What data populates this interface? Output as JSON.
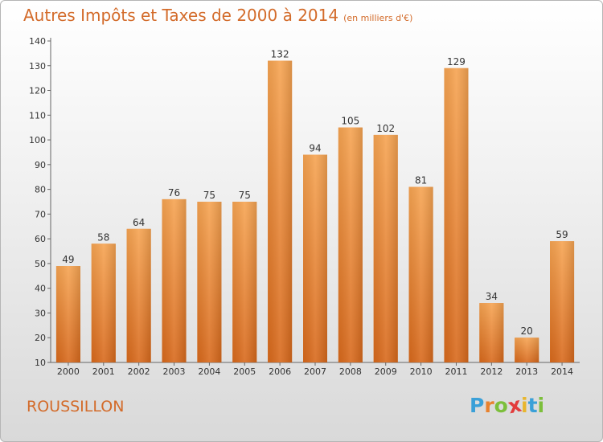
{
  "chart_data": {
    "type": "bar",
    "title": "Autres Impôts et Taxes de 2000 à 2014",
    "subtitle": "(en milliers d'€)",
    "categories": [
      "2000",
      "2001",
      "2002",
      "2003",
      "2004",
      "2005",
      "2006",
      "2007",
      "2008",
      "2009",
      "2010",
      "2011",
      "2012",
      "2013",
      "2014"
    ],
    "values": [
      49,
      58,
      64,
      76,
      75,
      75,
      132,
      94,
      105,
      102,
      81,
      129,
      34,
      20,
      59
    ],
    "data_labels": [
      "49",
      "58",
      "64",
      "76",
      "75",
      "75",
      "132",
      "94",
      "105",
      "102",
      "81",
      "129",
      "34",
      "20",
      "59"
    ],
    "yticks": [
      "10",
      "20",
      "30",
      "40",
      "50",
      "60",
      "70",
      "80",
      "90",
      "100",
      "110",
      "120",
      "130",
      "140"
    ],
    "ylim": [
      10,
      140
    ],
    "grid": false,
    "bar_color": "#e8822e"
  },
  "footer": {
    "place": "ROUSSILLON",
    "logo_letters": [
      "P",
      "r",
      "o",
      "x",
      "i",
      "t",
      "i"
    ],
    "logo_colors": [
      "#3aa0d8",
      "#e8822e",
      "#7cbf3b",
      "#e23b3b",
      "#e8b62e",
      "#3aa0d8",
      "#7cbf3b"
    ]
  }
}
